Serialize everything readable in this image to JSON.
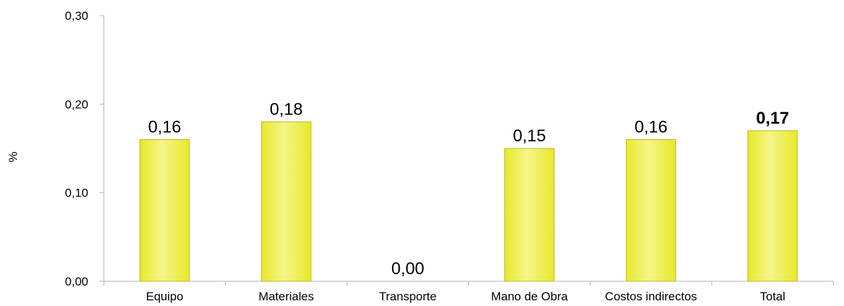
{
  "chart_data": {
    "type": "bar",
    "categories": [
      "Equipo",
      "Materiales",
      "Transporte",
      "Mano de Obra",
      "Costos indirectos",
      "Total"
    ],
    "values": [
      0.16,
      0.18,
      0.0,
      0.15,
      0.16,
      0.17
    ],
    "data_labels": [
      "0,16",
      "0,18",
      "0,00",
      "0,15",
      "0,16",
      "0,17"
    ],
    "bold_labels": [
      false,
      false,
      false,
      false,
      false,
      true
    ],
    "title": "",
    "xlabel": "",
    "ylabel": "%",
    "ylim": [
      0,
      0.3
    ],
    "yticks": [
      0.0,
      0.1,
      0.2,
      0.3
    ],
    "ytick_labels": [
      "0,00",
      "0,10",
      "0,20",
      "0,30"
    ],
    "grid": false,
    "legend": "none",
    "colors": {
      "bar_fill": "#e8e82a",
      "bar_highlight": "#f5f58a",
      "bar_edge": "#b8b820",
      "axis": "#b0b0b0"
    }
  }
}
